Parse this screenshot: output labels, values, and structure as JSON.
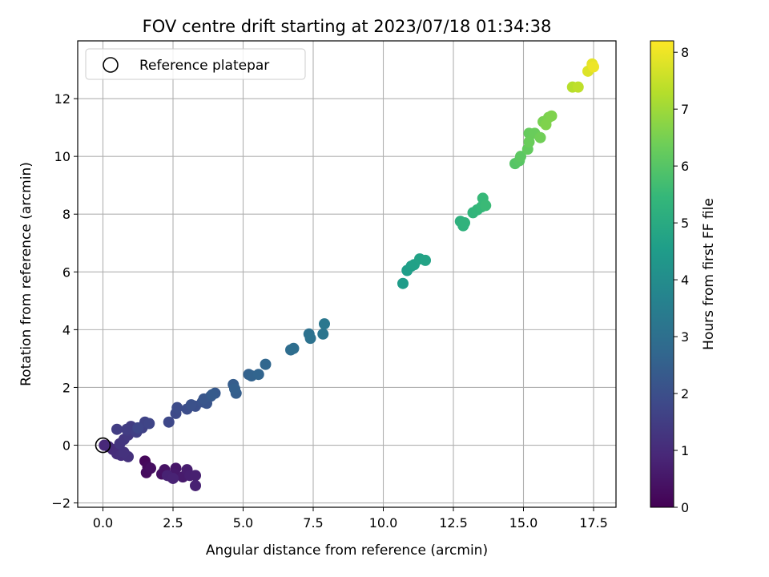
{
  "chart_data": {
    "type": "scatter",
    "title": "FOV centre drift starting at 2023/07/18 01:34:38",
    "xlabel": "Angular distance from reference (arcmin)",
    "ylabel": "Rotation from reference (arcmin)",
    "xlim": [
      -0.9,
      18.3
    ],
    "ylim": [
      -2.15,
      14.0
    ],
    "xticks": [
      0.0,
      2.5,
      5.0,
      7.5,
      10.0,
      12.5,
      15.0,
      17.5
    ],
    "xtick_labels": [
      "0.0",
      "2.5",
      "5.0",
      "7.5",
      "10.0",
      "12.5",
      "15.0",
      "17.5"
    ],
    "yticks": [
      -2,
      0,
      2,
      4,
      6,
      8,
      10,
      12
    ],
    "ytick_labels": [
      "−2",
      "0",
      "2",
      "4",
      "6",
      "8",
      "10",
      "12"
    ],
    "grid": true,
    "legend": {
      "placement": "top-left",
      "entries": [
        "Reference platepar"
      ]
    },
    "reference_point": {
      "x": 0.0,
      "y": 0.0,
      "label": "Reference platepar"
    },
    "colorbar": {
      "label": "Hours from first FF file",
      "min": 0,
      "max": 8.2,
      "ticks": [
        0,
        1,
        2,
        3,
        4,
        5,
        6,
        7,
        8
      ],
      "colormap": "viridis"
    },
    "colormap_stops": [
      "#440154",
      "#482878",
      "#3e4989",
      "#31688e",
      "#26828e",
      "#1f9e89",
      "#35b779",
      "#6ece58",
      "#b5de2b",
      "#fde725"
    ],
    "points": [
      [
        1.5,
        -0.55,
        0.15
      ],
      [
        1.6,
        -0.75,
        0.2
      ],
      [
        1.55,
        -0.95,
        0.25
      ],
      [
        1.7,
        -0.8,
        0.3
      ],
      [
        2.1,
        -1.0,
        0.35
      ],
      [
        2.2,
        -0.85,
        0.4
      ],
      [
        2.45,
        -1.1,
        0.45
      ],
      [
        2.6,
        -0.8,
        0.5
      ],
      [
        2.55,
        -1.0,
        0.55
      ],
      [
        2.85,
        -1.1,
        0.6
      ],
      [
        3.0,
        -0.85,
        0.65
      ],
      [
        3.1,
        -1.05,
        0.7
      ],
      [
        3.3,
        -1.05,
        0.72
      ],
      [
        3.3,
        -1.4,
        0.75
      ],
      [
        2.3,
        -1.05,
        0.78
      ],
      [
        2.5,
        -1.15,
        0.8
      ],
      [
        0.05,
        0.0,
        0.9
      ],
      [
        0.2,
        -0.05,
        0.95
      ],
      [
        0.35,
        -0.15,
        1.0
      ],
      [
        0.5,
        -0.3,
        1.05
      ],
      [
        0.65,
        -0.35,
        1.1
      ],
      [
        0.9,
        -0.4,
        1.15
      ],
      [
        0.75,
        -0.25,
        1.2
      ],
      [
        0.6,
        0.05,
        1.25
      ],
      [
        0.75,
        0.2,
        1.3
      ],
      [
        0.9,
        0.35,
        1.35
      ],
      [
        0.9,
        0.5,
        1.4
      ],
      [
        1.0,
        0.65,
        1.45
      ],
      [
        0.5,
        0.55,
        1.5
      ],
      [
        0.85,
        0.55,
        1.5
      ],
      [
        1.2,
        0.45,
        1.55
      ],
      [
        1.4,
        0.6,
        1.6
      ],
      [
        1.5,
        0.8,
        1.65
      ],
      [
        1.65,
        0.75,
        1.7
      ],
      [
        1.25,
        0.6,
        1.75
      ],
      [
        2.35,
        0.8,
        1.8
      ],
      [
        2.6,
        1.1,
        1.85
      ],
      [
        2.65,
        1.3,
        1.9
      ],
      [
        3.0,
        1.25,
        1.95
      ],
      [
        3.3,
        1.35,
        2.0
      ],
      [
        3.15,
        1.4,
        2.05
      ],
      [
        3.55,
        1.5,
        2.1
      ],
      [
        3.7,
        1.45,
        2.15
      ],
      [
        3.6,
        1.6,
        2.2
      ],
      [
        3.85,
        1.7,
        2.25
      ],
      [
        4.0,
        1.8,
        2.3
      ],
      [
        3.9,
        1.75,
        2.35
      ],
      [
        4.65,
        2.1,
        2.4
      ],
      [
        4.75,
        1.8,
        2.45
      ],
      [
        4.7,
        1.95,
        2.5
      ],
      [
        5.2,
        2.45,
        2.55
      ],
      [
        5.3,
        2.4,
        2.6
      ],
      [
        5.55,
        2.45,
        2.65
      ],
      [
        5.8,
        2.8,
        2.7
      ],
      [
        6.7,
        3.3,
        2.9
      ],
      [
        6.8,
        3.35,
        2.95
      ],
      [
        7.35,
        3.85,
        3.05
      ],
      [
        7.4,
        3.7,
        3.1
      ],
      [
        7.85,
        3.85,
        3.2
      ],
      [
        7.9,
        4.2,
        3.25
      ],
      [
        10.7,
        5.6,
        4.5
      ],
      [
        10.85,
        6.05,
        4.55
      ],
      [
        11.0,
        6.2,
        4.6
      ],
      [
        11.1,
        6.25,
        4.65
      ],
      [
        11.3,
        6.45,
        4.7
      ],
      [
        11.5,
        6.4,
        4.75
      ],
      [
        12.75,
        7.75,
        5.2
      ],
      [
        12.85,
        7.6,
        5.25
      ],
      [
        12.9,
        7.7,
        5.3
      ],
      [
        13.2,
        8.05,
        5.35
      ],
      [
        13.35,
        8.15,
        5.4
      ],
      [
        13.5,
        8.25,
        5.45
      ],
      [
        13.55,
        8.55,
        5.5
      ],
      [
        13.65,
        8.3,
        5.55
      ],
      [
        14.7,
        9.75,
        6.0
      ],
      [
        14.85,
        9.85,
        6.05
      ],
      [
        14.9,
        10.0,
        6.1
      ],
      [
        15.15,
        10.25,
        6.2
      ],
      [
        15.2,
        10.8,
        6.25
      ],
      [
        15.4,
        10.8,
        6.3
      ],
      [
        15.2,
        10.5,
        6.3
      ],
      [
        15.6,
        10.65,
        6.4
      ],
      [
        15.7,
        11.2,
        6.5
      ],
      [
        15.9,
        11.35,
        6.55
      ],
      [
        16.0,
        11.4,
        6.6
      ],
      [
        15.8,
        11.1,
        6.6
      ],
      [
        16.75,
        12.4,
        7.3
      ],
      [
        16.95,
        12.4,
        7.4
      ],
      [
        17.3,
        12.95,
        7.8
      ],
      [
        17.45,
        13.2,
        7.9
      ],
      [
        17.5,
        13.1,
        8.0
      ]
    ]
  }
}
